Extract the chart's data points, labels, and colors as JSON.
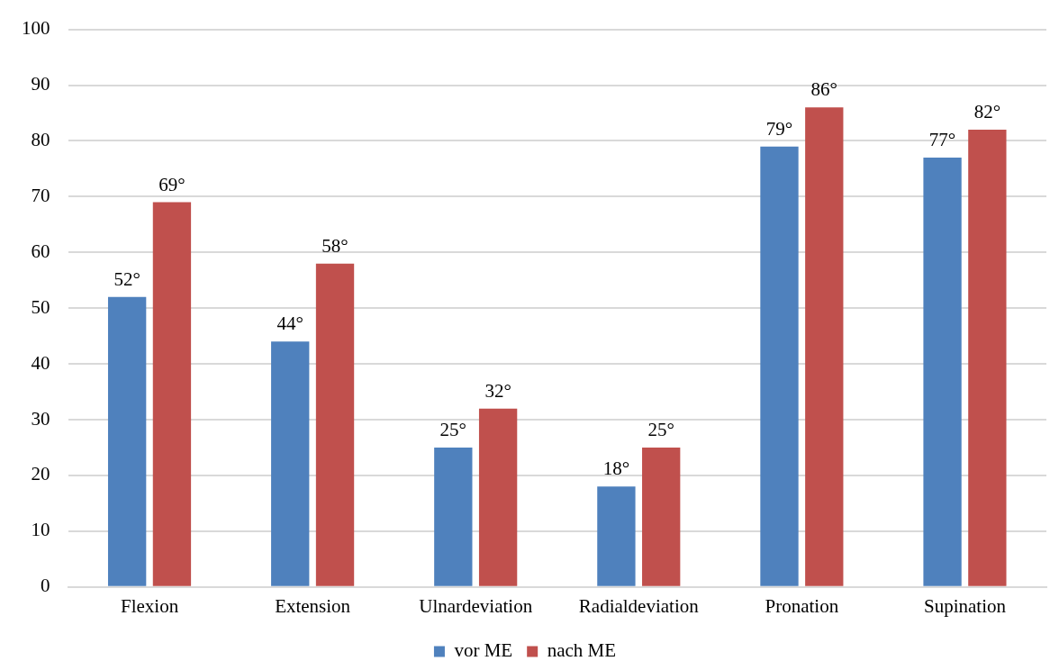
{
  "chart_data": {
    "type": "bar",
    "categories": [
      "Flexion",
      "Extension",
      "Ulnardeviation",
      "Radialdeviation",
      "Pronation",
      "Supination"
    ],
    "series": [
      {
        "name": "vor ME",
        "color": "#4f81bd",
        "values": [
          52,
          44,
          25,
          18,
          79,
          77
        ],
        "value_labels": [
          "52°",
          "44°",
          "25°",
          "18°",
          "79°",
          "77°"
        ]
      },
      {
        "name": "nach ME",
        "color": "#c0504d",
        "values": [
          69,
          58,
          32,
          25,
          86,
          82
        ],
        "value_labels": [
          "69°",
          "58°",
          "32°",
          "25°",
          "86°",
          "82°"
        ]
      }
    ],
    "ylim": [
      0,
      100
    ],
    "yticks": [
      0,
      10,
      20,
      30,
      40,
      50,
      60,
      70,
      80,
      90,
      100
    ],
    "grid": "y",
    "legend": "bottom"
  }
}
